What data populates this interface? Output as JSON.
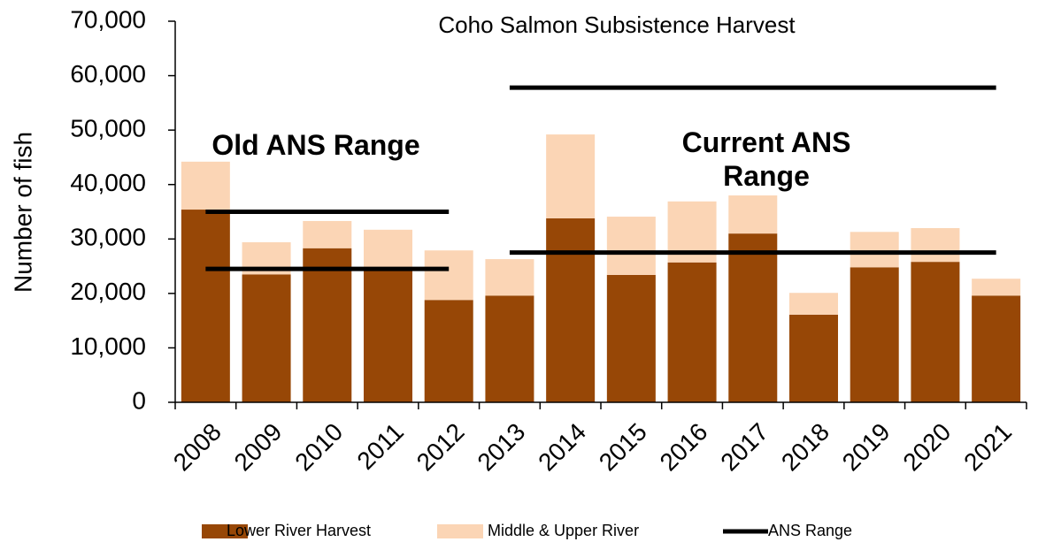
{
  "chart_data": {
    "type": "bar",
    "stacked": true,
    "title": "Coho Salmon Subsistence Harvest",
    "y_label": "Number of fish",
    "categories": [
      "2008",
      "2009",
      "2010",
      "2011",
      "2012",
      "2013",
      "2014",
      "2015",
      "2016",
      "2017",
      "2018",
      "2019",
      "2020",
      "2021"
    ],
    "series": [
      {
        "name": "Lower River Harvest",
        "color": "#974706",
        "values": [
          35400,
          23500,
          28300,
          24700,
          18800,
          19600,
          33800,
          23400,
          25700,
          31000,
          16100,
          24800,
          25800,
          19600
        ]
      },
      {
        "name": "Middle & Upper River",
        "color": "#fbd5b5",
        "values": [
          8800,
          5900,
          5000,
          7000,
          9100,
          6700,
          15400,
          10700,
          11200,
          7000,
          4000,
          6500,
          6200,
          3100
        ]
      }
    ],
    "ans_name": "ANS Range",
    "ans_color": "#000000",
    "ans_ranges": [
      {
        "label": "Old ANS Range",
        "from": "2008",
        "to": "2012",
        "low": 24500,
        "high": 35000
      },
      {
        "label": "Current ANS Range",
        "from": "2013",
        "to": "2021",
        "low": 27500,
        "high": 57800
      }
    ],
    "ylim": [
      0,
      70000
    ],
    "yticks": [
      0,
      {
        "value": 10000,
        "label": "10,000"
      },
      {
        "value": 20000,
        "label": "20,000"
      },
      {
        "value": 30000,
        "label": "30,000"
      },
      {
        "value": 40000,
        "label": "40,000"
      },
      {
        "value": 50000,
        "label": "50,000"
      },
      {
        "value": 60000,
        "label": "60,000"
      },
      {
        "value": 70000,
        "label": "70,000"
      }
    ],
    "legend": "bottom"
  }
}
